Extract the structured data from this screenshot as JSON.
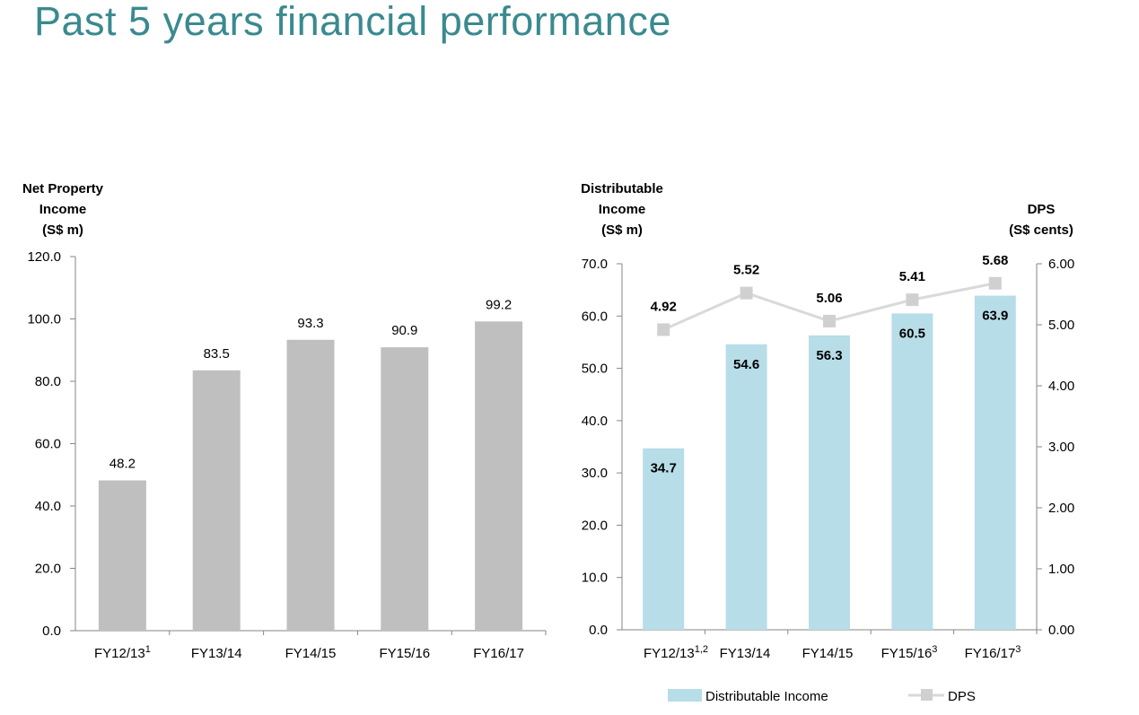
{
  "page": {
    "title": "Past 5 years financial performance"
  },
  "colors": {
    "title": "#3a8a8f",
    "npi_bar": "#bfbfbf",
    "di_bar": "#b7dde8",
    "dps_line": "#d9d9d9",
    "dps_marker": "#d0d0d0",
    "axis": "#868686"
  },
  "chart_data": [
    {
      "type": "bar",
      "title": "",
      "ylabel": [
        "Net Property",
        "Income",
        "(S$ m)"
      ],
      "categories": [
        "FY12/13",
        "FY13/14",
        "FY14/15",
        "FY15/16",
        "FY16/17"
      ],
      "category_notes": [
        "1",
        "",
        "",
        "",
        ""
      ],
      "values": [
        48.2,
        83.5,
        93.3,
        90.9,
        99.2
      ],
      "value_labels": [
        "48.2",
        "83.5",
        "93.3",
        "90.9",
        "99.2"
      ],
      "ylim": [
        0,
        120
      ],
      "yticks": [
        "0.0",
        "20.0",
        "40.0",
        "60.0",
        "80.0",
        "100.0",
        "120.0"
      ],
      "grid": false
    },
    {
      "type": "bar+line",
      "title": "",
      "ylabel": [
        "Distributable",
        "Income",
        "(S$ m)"
      ],
      "y2label": [
        "DPS",
        "(S$ cents)"
      ],
      "categories": [
        "FY12/13",
        "FY13/14",
        "FY14/15",
        "FY15/16",
        "FY16/17"
      ],
      "category_notes": [
        "1,2",
        "",
        "",
        "3",
        "3"
      ],
      "series": [
        {
          "name": "Distributable Income",
          "kind": "bar",
          "axis": "left",
          "values": [
            34.7,
            54.6,
            56.3,
            60.5,
            63.9
          ],
          "value_labels": [
            "34.7",
            "54.6",
            "56.3",
            "60.5",
            "63.9"
          ]
        },
        {
          "name": "DPS",
          "kind": "line",
          "axis": "right",
          "values": [
            4.92,
            5.52,
            5.06,
            5.41,
            5.68
          ],
          "value_labels": [
            "4.92",
            "5.52",
            "5.06",
            "5.41",
            "5.68"
          ]
        }
      ],
      "ylim": [
        0,
        70
      ],
      "yticks": [
        "0.0",
        "10.0",
        "20.0",
        "30.0",
        "40.0",
        "50.0",
        "60.0",
        "70.0"
      ],
      "y2lim": [
        0,
        6
      ],
      "y2ticks": [
        "0.00",
        "1.00",
        "2.00",
        "3.00",
        "4.00",
        "5.00",
        "6.00"
      ],
      "legend": [
        "Distributable Income",
        "DPS"
      ],
      "legend_position": "bottom",
      "grid": false
    }
  ]
}
